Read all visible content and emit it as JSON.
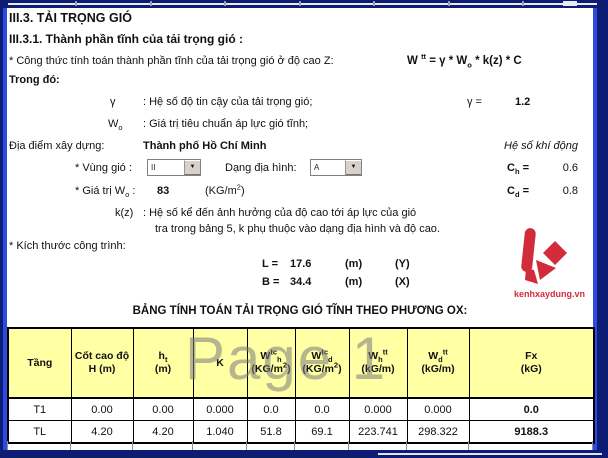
{
  "page": {
    "watermark": "Page 1"
  },
  "colors": {
    "border_navy": "#0d1d74",
    "page_break_blue": "#2f49e0",
    "header_yellow": "#ffffa3",
    "logo_red": "#d22b3a",
    "watermark_gray": "#8a8a8a"
  },
  "header": {
    "section_title": "III.3. TẢI TRỌNG GIÓ",
    "subsection_title": "III.3.1. Thành phần tĩnh của tải trọng gió :",
    "formula_intro": "* Công thức tính toán thành phần tĩnh của tải trọng gió ở độ cao Z:",
    "formula_parts": [
      {
        "t": "W ",
        "s": ""
      },
      {
        "t": "tt",
        "s": "sup"
      },
      {
        "t": " = γ * W",
        "s": ""
      },
      {
        "t": "o",
        "s": "sub"
      },
      {
        "t": " * k(z) * C",
        "s": ""
      }
    ],
    "in_which": "Trong đó:"
  },
  "params": {
    "gamma": {
      "symbol": "γ",
      "desc": ": Hệ số độ tin cậy của tải trọng gió;",
      "eq_label": "γ  =",
      "value": "1.2"
    },
    "wo": {
      "symbol_base": "W",
      "symbol_sub": "o",
      "desc": ": Giá trị tiêu chuẩn áp lực gió tĩnh;"
    },
    "location": {
      "label": "Địa điểm xây dựng:",
      "value": "Thành phố Hồ Chí Minh",
      "aero_label": "Hệ số khí động"
    },
    "wind_zone": {
      "label": "* Vùng gió :",
      "value": "II"
    },
    "terrain": {
      "label": "Dạng địa hình:",
      "value": "A"
    },
    "ch": {
      "base": "C",
      "sub": "h",
      "eq": " =",
      "value": "0.6"
    },
    "cd": {
      "base": "C",
      "sub": "d",
      "eq": " =",
      "value": "0.8"
    },
    "wo_value": {
      "label_pre": "* Giá trị W",
      "label_sub": "o",
      "label_post": " :",
      "value": "83",
      "unit_pre": "(KG/m",
      "unit_sup": "2",
      "unit_post": ")"
    },
    "kz": {
      "symbol": "k(z)",
      "desc": ": Hệ số kể đến ảnh hưởng của độ cao tới áp lực của gió",
      "desc2": "tra trong bảng 5, k phụ thuộc vào dạng địa hình và độ cao."
    }
  },
  "dimensions": {
    "label": "* Kích thước công trình:",
    "rows": [
      {
        "name": "L =",
        "value": "17.6",
        "unit": "(m)",
        "axis": "(Y)"
      },
      {
        "name": "B =",
        "value": "34.4",
        "unit": "(m)",
        "axis": "(X)"
      }
    ]
  },
  "logo": {
    "text": "kenhxaydung.vn"
  },
  "table": {
    "title": "BẢNG TÍNH TOÁN TẢI TRỌNG GIÓ TĨNH THEO PHƯƠNG OX:",
    "columns": [
      {
        "l1": [
          [
            "Tầng",
            ""
          ]
        ],
        "l2": []
      },
      {
        "l1": [
          [
            "Cốt cao độ",
            ""
          ]
        ],
        "l2": [
          [
            "H (m)",
            ""
          ]
        ]
      },
      {
        "l1": [
          [
            "h",
            ""
          ],
          [
            "t",
            "sub"
          ]
        ],
        "l2": [
          [
            "(m)",
            ""
          ]
        ]
      },
      {
        "l1": [
          [
            "K",
            ""
          ]
        ],
        "l2": []
      },
      {
        "l1": [
          [
            "W",
            ""
          ],
          [
            "tc",
            "sup"
          ],
          [
            "h",
            "sub"
          ]
        ],
        "l2": [
          [
            "(KG/m",
            ""
          ],
          [
            "2",
            "sup"
          ],
          [
            ")",
            ""
          ]
        ]
      },
      {
        "l1": [
          [
            "W",
            ""
          ],
          [
            "tc",
            "sup"
          ],
          [
            "d",
            "sub"
          ]
        ],
        "l2": [
          [
            "(KG/m",
            ""
          ],
          [
            "2",
            "sup"
          ],
          [
            ")",
            ""
          ]
        ]
      },
      {
        "l1": [
          [
            "W",
            ""
          ],
          [
            "h",
            "sub"
          ],
          [
            "tt",
            "sup"
          ]
        ],
        "l2": [
          [
            "(kG/m",
            ""
          ],
          [
            ")",
            ""
          ]
        ]
      },
      {
        "l1": [
          [
            "W",
            ""
          ],
          [
            "d",
            "sub"
          ],
          [
            "tt",
            "sup"
          ]
        ],
        "l2": [
          [
            "(kG/m",
            ""
          ],
          [
            ")",
            ""
          ]
        ]
      },
      {
        "l1": [
          [
            "Fx",
            ""
          ]
        ],
        "l2": [
          [
            "(kG)",
            ""
          ]
        ]
      }
    ],
    "rows": [
      [
        "T1",
        "0.00",
        "0.00",
        "0.000",
        "0.0",
        "0.0",
        "0.000",
        "0.000",
        "0.0"
      ],
      [
        "TL",
        "4.20",
        "4.20",
        "1.040",
        "51.8",
        "69.1",
        "223.741",
        "298.322",
        "9188.3"
      ]
    ]
  }
}
